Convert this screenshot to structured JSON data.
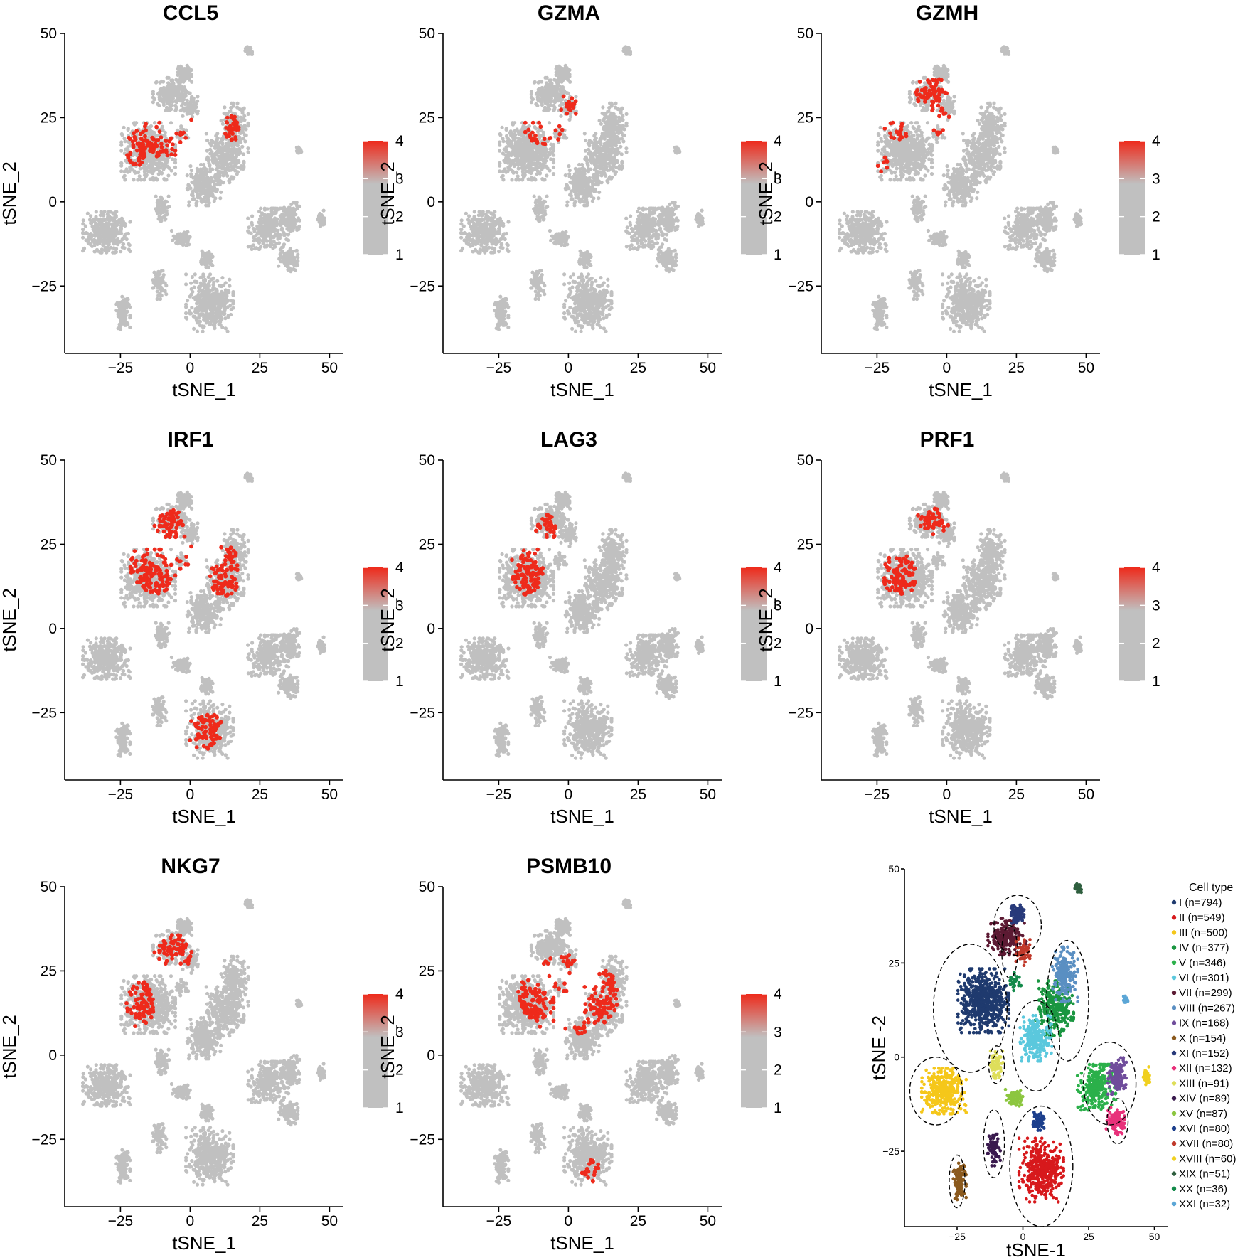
{
  "chart_data": [
    {
      "type": "scatter",
      "title": "CCL5",
      "xlabel": "tSNE_1",
      "ylabel": "tSNE_2",
      "xlim": [
        -45,
        55
      ],
      "ylim": [
        -45,
        50
      ],
      "xticks": [
        "−25",
        "0",
        "25",
        "50"
      ],
      "yticks": [
        "−25",
        "0",
        "25",
        "50"
      ],
      "colorbar": {
        "min": 1,
        "max": 4,
        "ticks": [
          "1",
          "2",
          "3",
          "4"
        ],
        "low_color": "#c0c0c0",
        "high_color": "#ee2a1b"
      },
      "highlight_regions": [
        [
          -8,
          20,
          13,
          7
        ],
        [
          -20,
          15,
          4,
          5
        ],
        [
          15,
          22,
          3,
          4
        ],
        [
          17,
          -10,
          1,
          1
        ]
      ]
    },
    {
      "type": "scatter",
      "title": "GZMA",
      "xlabel": "tSNE_1",
      "ylabel": "tSNE_2",
      "xlim": [
        -45,
        55
      ],
      "ylim": [
        -45,
        50
      ],
      "xticks": [
        "−25",
        "0",
        "25",
        "50"
      ],
      "yticks": [
        "−25",
        "0",
        "25",
        "50"
      ],
      "colorbar": {
        "min": 1,
        "max": 4,
        "ticks": [
          "1",
          "2",
          "3",
          "4"
        ],
        "low_color": "#c0c0c0",
        "high_color": "#ee2a1b"
      },
      "highlight_regions": [
        [
          -8,
          22,
          8,
          5
        ],
        [
          0,
          28,
          4,
          4
        ]
      ]
    },
    {
      "type": "scatter",
      "title": "GZMH",
      "xlabel": "tSNE_1",
      "ylabel": "tSNE_2",
      "xlim": [
        -45,
        55
      ],
      "ylim": [
        -45,
        50
      ],
      "xticks": [
        "−25",
        "0",
        "25",
        "50"
      ],
      "yticks": [
        "−25",
        "0",
        "25",
        "50"
      ],
      "colorbar": {
        "min": 1,
        "max": 4,
        "ticks": [
          "1",
          "2",
          "3",
          "4"
        ],
        "low_color": "#c0c0c0",
        "high_color": "#ee2a1b"
      },
      "highlight_regions": [
        [
          -6,
          33,
          7,
          4
        ],
        [
          -18,
          22,
          5,
          4
        ],
        [
          -25,
          11,
          4,
          4
        ],
        [
          -3,
          25,
          4,
          5
        ]
      ]
    },
    {
      "type": "scatter",
      "title": "IRF1",
      "xlabel": "tSNE_1",
      "ylabel": "tSNE_2",
      "xlim": [
        -45,
        55
      ],
      "ylim": [
        -45,
        50
      ],
      "xticks": [
        "−25",
        "0",
        "25",
        "50"
      ],
      "yticks": [
        "−25",
        "0",
        "25",
        "50"
      ],
      "colorbar": {
        "min": 1,
        "max": 4,
        "ticks": [
          "1",
          "2",
          "3",
          "4"
        ],
        "low_color": "#c0c0c0",
        "high_color": "#ee2a1b"
      },
      "highlight_regions": [
        [
          -10,
          20,
          12,
          10
        ],
        [
          12,
          17,
          6,
          8
        ],
        [
          5,
          -30,
          7,
          6
        ],
        [
          -8,
          30,
          6,
          6
        ]
      ]
    },
    {
      "type": "scatter",
      "title": "LAG3",
      "xlabel": "tSNE_1",
      "ylabel": "tSNE_2",
      "xlim": [
        -45,
        55
      ],
      "ylim": [
        -45,
        50
      ],
      "xticks": [
        "−25",
        "0",
        "25",
        "50"
      ],
      "yticks": [
        "−25",
        "0",
        "25",
        "50"
      ],
      "colorbar": {
        "min": 1,
        "max": 4,
        "ticks": [
          "1",
          "2",
          "3",
          "4"
        ],
        "low_color": "#c0c0c0",
        "high_color": "#ee2a1b"
      },
      "highlight_regions": [
        [
          -15,
          18,
          6,
          8
        ],
        [
          -8,
          30,
          4,
          4
        ]
      ]
    },
    {
      "type": "scatter",
      "title": "PRF1",
      "xlabel": "tSNE_1",
      "ylabel": "tSNE_2",
      "xlim": [
        -45,
        55
      ],
      "ylim": [
        -45,
        50
      ],
      "xticks": [
        "−25",
        "0",
        "25",
        "50"
      ],
      "yticks": [
        "−25",
        "0",
        "25",
        "50"
      ],
      "colorbar": {
        "min": 1,
        "max": 4,
        "ticks": [
          "1",
          "2",
          "3",
          "4"
        ],
        "low_color": "#c0c0c0",
        "high_color": "#ee2a1b"
      },
      "highlight_regions": [
        [
          -17,
          16,
          6,
          7
        ],
        [
          -5,
          32,
          6,
          4
        ]
      ]
    },
    {
      "type": "scatter",
      "title": "NKG7",
      "xlabel": "tSNE_1",
      "ylabel": "tSNE_2",
      "xlim": [
        -45,
        55
      ],
      "ylim": [
        -45,
        50
      ],
      "xticks": [
        "−25",
        "0",
        "25",
        "50"
      ],
      "yticks": [
        "−25",
        "0",
        "25",
        "50"
      ],
      "colorbar": {
        "min": 1,
        "max": 4,
        "ticks": [
          "1",
          "2",
          "3",
          "4"
        ],
        "low_color": "#c0c0c0",
        "high_color": "#ee2a1b"
      },
      "highlight_regions": [
        [
          -18,
          15,
          5,
          7
        ],
        [
          -6,
          30,
          7,
          6
        ]
      ]
    },
    {
      "type": "scatter",
      "title": "PSMB10",
      "xlabel": "tSNE_1",
      "ylabel": "tSNE_2",
      "xlim": [
        -45,
        55
      ],
      "ylim": [
        -45,
        50
      ],
      "xticks": [
        "−25",
        "0",
        "25",
        "50"
      ],
      "yticks": [
        "−25",
        "0",
        "25",
        "50"
      ],
      "colorbar": {
        "min": 1,
        "max": 4,
        "ticks": [
          "1",
          "2",
          "3",
          "4"
        ],
        "low_color": "#c0c0c0",
        "high_color": "#ee2a1b"
      },
      "highlight_regions": [
        [
          0,
          18,
          18,
          12
        ],
        [
          8,
          -35,
          4,
          4
        ]
      ]
    },
    {
      "type": "scatter",
      "title": "",
      "xlabel": "tSNE-1",
      "ylabel": "tSNE -2",
      "xlim": [
        -45,
        55
      ],
      "ylim": [
        -45,
        50
      ],
      "xticks": [
        "−25",
        "0",
        "25",
        "50"
      ],
      "yticks": [
        "−25",
        "0",
        "25",
        "50"
      ],
      "legend_title": "Cell type",
      "legend_position": "right",
      "series": [
        {
          "name": "I (n=794)",
          "color": "#1f3a6e",
          "n": 794,
          "center": [
            -15,
            15
          ],
          "spread": [
            8,
            7
          ]
        },
        {
          "name": "II (n=549)",
          "color": "#d7191c",
          "n": 549,
          "center": [
            7,
            -30
          ],
          "spread": [
            7,
            7
          ]
        },
        {
          "name": "III (n=500)",
          "color": "#f5c71a",
          "n": 500,
          "center": [
            -30,
            -9
          ],
          "spread": [
            7,
            5
          ]
        },
        {
          "name": "IV (n=377)",
          "color": "#1a9641",
          "n": 377,
          "center": [
            12,
            13
          ],
          "spread": [
            6,
            6
          ]
        },
        {
          "name": "V (n=346)",
          "color": "#2bb04a",
          "n": 346,
          "center": [
            28,
            -8
          ],
          "spread": [
            6,
            5
          ]
        },
        {
          "name": "VI (n=301)",
          "color": "#5bc8dd",
          "n": 301,
          "center": [
            5,
            5
          ],
          "spread": [
            5,
            5
          ]
        },
        {
          "name": "VII (n=299)",
          "color": "#5c1a33",
          "n": 299,
          "center": [
            -6,
            32
          ],
          "spread": [
            6,
            4
          ]
        },
        {
          "name": "VIII (n=267)",
          "color": "#5a8fc2",
          "n": 267,
          "center": [
            16,
            22
          ],
          "spread": [
            4,
            6
          ]
        },
        {
          "name": "IX (n=168)",
          "color": "#6f4c9b",
          "n": 168,
          "center": [
            36,
            -5
          ],
          "spread": [
            3,
            4
          ]
        },
        {
          "name": "X (n=154)",
          "color": "#8b5a1e",
          "n": 154,
          "center": [
            -24,
            -33
          ],
          "spread": [
            2,
            4
          ]
        },
        {
          "name": "XI (n=152)",
          "color": "#283a7a",
          "n": 152,
          "center": [
            -2,
            38
          ],
          "spread": [
            2,
            2
          ]
        },
        {
          "name": "XII (n=132)",
          "color": "#e8317a",
          "n": 132,
          "center": [
            35,
            -17
          ],
          "spread": [
            3,
            3
          ]
        },
        {
          "name": "XIII (n=91)",
          "color": "#dede5a",
          "n": 91,
          "center": [
            -10,
            -2
          ],
          "spread": [
            2,
            3
          ]
        },
        {
          "name": "XIV (n=89)",
          "color": "#3a1a4e",
          "n": 89,
          "center": [
            -11,
            -24
          ],
          "spread": [
            2,
            4
          ]
        },
        {
          "name": "XV (n=87)",
          "color": "#8cc63f",
          "n": 87,
          "center": [
            -3,
            -11
          ],
          "spread": [
            3,
            2
          ]
        },
        {
          "name": "XVI (n=80)",
          "color": "#1c3f8c",
          "n": 80,
          "center": [
            6,
            -17
          ],
          "spread": [
            2,
            2
          ]
        },
        {
          "name": "XVII (n=80)",
          "color": "#c0392b",
          "n": 80,
          "center": [
            0,
            28
          ],
          "spread": [
            3,
            3
          ]
        },
        {
          "name": "XVIII (n=60)",
          "color": "#f0d020",
          "n": 60,
          "center": [
            47,
            -5
          ],
          "spread": [
            1,
            2
          ]
        },
        {
          "name": "XIX (n=51)",
          "color": "#2f5f3f",
          "n": 51,
          "center": [
            21,
            45
          ],
          "spread": [
            1,
            1
          ]
        },
        {
          "name": "XX (n=36)",
          "color": "#138a4a",
          "n": 36,
          "center": [
            -3,
            20
          ],
          "spread": [
            2,
            2
          ]
        },
        {
          "name": "XXI (n=32)",
          "color": "#5ba6d6",
          "n": 32,
          "center": [
            39,
            15
          ],
          "spread": [
            1,
            1
          ]
        }
      ],
      "cluster_outlines": [
        [
          -20,
          13,
          14,
          17
        ],
        [
          -2,
          35,
          9,
          8
        ],
        [
          -5,
          28,
          3,
          7
        ],
        [
          17,
          15,
          8,
          16
        ],
        [
          5,
          3,
          9,
          12
        ],
        [
          33,
          -7,
          10,
          11
        ],
        [
          -33,
          -9,
          10,
          9
        ],
        [
          -10,
          -2,
          3,
          5
        ],
        [
          -25,
          -33,
          3,
          7
        ],
        [
          -11,
          -23,
          4,
          9
        ],
        [
          7,
          -29,
          12,
          16
        ],
        [
          36,
          -17,
          4,
          6
        ]
      ]
    }
  ]
}
